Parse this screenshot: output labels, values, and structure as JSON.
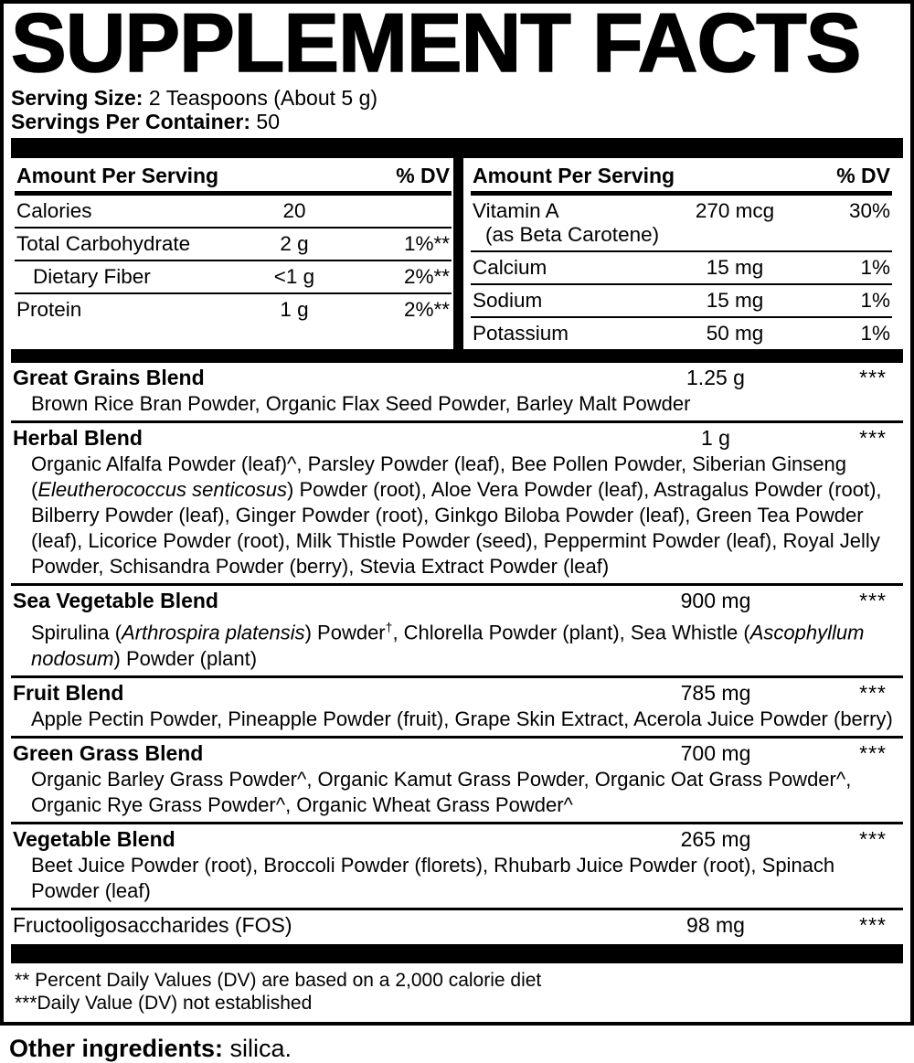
{
  "label": {
    "title": "SUPPLEMENT FACTS",
    "serving_size_label": "Serving Size:",
    "serving_size_value": " 2 Teaspoons (About 5 g)",
    "servings_per_container_label": "Servings Per Container:",
    "servings_per_container_value": " 50"
  },
  "table": {
    "amount_header_left": "Amount Per Serving",
    "dv_header_left": "% DV",
    "amount_header_right": "Amount Per Serving",
    "dv_header_right": "% DV",
    "left_rows": [
      {
        "name": "Calories",
        "amount": "20",
        "dv": ""
      },
      {
        "name": "Total Carbohydrate",
        "amount": "2 g",
        "dv": "1%**"
      },
      {
        "name": "Dietary Fiber",
        "amount": "<1 g",
        "dv": "2%**"
      },
      {
        "name": "Protein",
        "amount": "1 g",
        "dv": "2%**"
      }
    ],
    "right_rows": [
      {
        "name": "Vitamin A",
        "subname": "(as Beta Carotene)",
        "amount": "270 mcg",
        "dv": "30%"
      },
      {
        "name": "Calcium",
        "amount": "15 mg",
        "dv": "1%"
      },
      {
        "name": "Sodium",
        "amount": "15 mg",
        "dv": "1%"
      },
      {
        "name": "Potassium",
        "amount": "50 mg",
        "dv": "1%"
      }
    ]
  },
  "blends": [
    {
      "name": "Great Grains Blend",
      "amount": "1.25 g",
      "dv": "***",
      "ingredients": [
        {
          "text": "Brown Rice Bran Powder, Organic Flax Seed Powder, Barley Malt Powder"
        }
      ]
    },
    {
      "name": "Herbal Blend",
      "amount": "1 g",
      "dv": "***",
      "ingredients": [
        {
          "text": "Organic Alfalfa Powder (leaf)^, Parsley Powder (leaf), Bee Pollen Powder, Siberian Ginseng ("
        },
        {
          "text": "Eleutherococcus senticosus",
          "style": "i"
        },
        {
          "text": ") Powder (root), Aloe Vera Powder (leaf), Astragalus Powder (root), Bilberry Powder (leaf), Ginger Powder (root), Ginkgo Biloba Powder (leaf), Green Tea Powder (leaf), Licorice Powder (root), Milk Thistle Powder (seed), Peppermint Powder (leaf), Royal Jelly Powder, Schisandra Powder (berry), Stevia Extract Powder (leaf)"
        }
      ]
    },
    {
      "name": "Sea Vegetable Blend",
      "amount": "900 mg",
      "dv": "***",
      "ingredients": [
        {
          "text": "Spirulina ("
        },
        {
          "text": "Arthrospira platensis",
          "style": "i"
        },
        {
          "text": ") Powder"
        },
        {
          "text": "†",
          "style": "sup"
        },
        {
          "text": ", Chlorella Powder (plant), Sea Whistle ("
        },
        {
          "text": "Ascophyllum nodosum",
          "style": "i"
        },
        {
          "text": ") Powder (plant)"
        }
      ]
    },
    {
      "name": "Fruit Blend",
      "amount": "785 mg",
      "dv": "***",
      "ingredients": [
        {
          "text": "Apple Pectin Powder, Pineapple Powder (fruit), Grape Skin Extract, Acerola Juice Powder (berry)"
        }
      ]
    },
    {
      "name": "Green Grass Blend",
      "amount": "700 mg",
      "dv": "***",
      "ingredients": [
        {
          "text": "Organic Barley Grass Powder^, Organic Kamut Grass Powder, Organic Oat Grass Powder^, Organic Rye Grass Powder^, Organic Wheat Grass Powder^"
        }
      ]
    },
    {
      "name": "Vegetable Blend",
      "amount": "265 mg",
      "dv": "***",
      "ingredients": [
        {
          "text": "Beet Juice Powder (root), Broccoli Powder (florets), Rhubarb Juice Powder (root), Spinach Powder (leaf)"
        }
      ]
    },
    {
      "name": "Fructooligosaccharides (FOS)",
      "amount": "98 mg",
      "dv": "***",
      "ingredients": []
    }
  ],
  "footnotes": [
    "** Percent Daily Values (DV) are based on a 2,000 calorie diet",
    "***Daily Value (DV) not established"
  ],
  "other_ingredients": {
    "label": "Other ingredients:",
    "value": " silica."
  },
  "colors": {
    "ink": "#000000",
    "background": "#ffffff"
  }
}
